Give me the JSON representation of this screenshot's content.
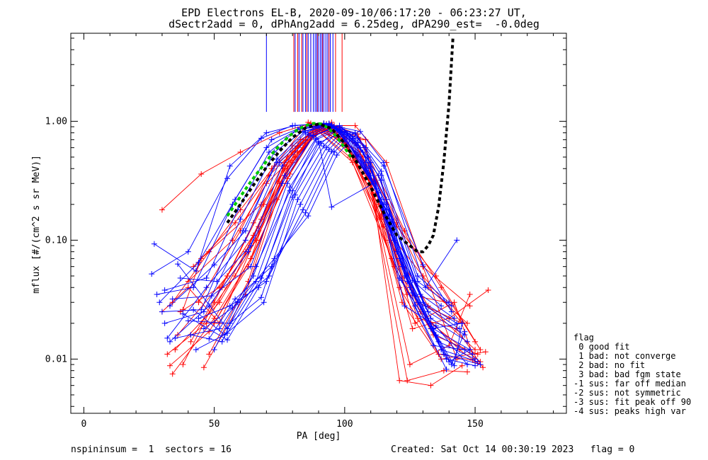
{
  "chart_data": {
    "type": "scatter",
    "title": "EPD Electrons EL-B, 2020-09-10/06:17:20 - 06:23:27 UT,",
    "subtitle": "dSectr2add = 0, dPhAng2add = 6.25deg, dPA290_est=  -0.0deg",
    "xlabel": "PA [deg]",
    "ylabel": "mflux [#/(cm^2 s sr MeV)]",
    "xlim": [
      -5,
      185
    ],
    "ylim": [
      0.0035,
      5.5
    ],
    "yscale": "log",
    "x_ticks": [
      0,
      50,
      100,
      150
    ],
    "y_ticks": [
      {
        "value": 0.01,
        "label": "0.01"
      },
      {
        "value": 0.1,
        "label": "0.10"
      },
      {
        "value": 1.0,
        "label": "1.00"
      }
    ],
    "colors": {
      "red": "#ff0000",
      "blue": "#0000ff",
      "fit": "#000000",
      "model": "#00c800"
    },
    "model_curve": {
      "name": "",
      "x": [
        55,
        58,
        61,
        64,
        67,
        70,
        73,
        76,
        79,
        82,
        85,
        88,
        91,
        94,
        97,
        100,
        103
      ],
      "y": [
        0.16,
        0.2,
        0.25,
        0.31,
        0.38,
        0.46,
        0.56,
        0.66,
        0.76,
        0.85,
        0.92,
        0.96,
        0.95,
        0.87,
        0.74,
        0.6,
        0.48
      ]
    },
    "fit_curve": {
      "name": "",
      "x": [
        55,
        60,
        65,
        70,
        75,
        80,
        85,
        90,
        95,
        100,
        105,
        110,
        115,
        120,
        125,
        128,
        130,
        132,
        134,
        136,
        138,
        140,
        141.5
      ],
      "y": [
        0.14,
        0.2,
        0.29,
        0.41,
        0.56,
        0.73,
        0.88,
        0.95,
        0.87,
        0.65,
        0.44,
        0.28,
        0.17,
        0.11,
        0.09,
        0.08,
        0.08,
        0.09,
        0.11,
        0.19,
        0.45,
        1.4,
        5.0
      ]
    },
    "red_series": [
      {
        "x": [
          30,
          45,
          60,
          75,
          87,
          100,
          115,
          130,
          145
        ],
        "y": [
          0.18,
          0.36,
          0.55,
          0.8,
          0.96,
          0.7,
          0.13,
          0.05,
          0.02
        ]
      },
      {
        "x": [
          32,
          47,
          62,
          77,
          88,
          102,
          117,
          132,
          150
        ],
        "y": [
          0.011,
          0.02,
          0.08,
          0.4,
          0.9,
          0.5,
          0.1,
          0.028,
          0.012
        ]
      },
      {
        "x": [
          33,
          48,
          63,
          78,
          89,
          103,
          118,
          133,
          152
        ],
        "y": [
          0.0088,
          0.017,
          0.06,
          0.33,
          0.86,
          0.45,
          0.07,
          0.02,
          0.0095
        ]
      },
      {
        "x": [
          34,
          50,
          64,
          79,
          90,
          104,
          119,
          134,
          151
        ],
        "y": [
          0.0075,
          0.022,
          0.07,
          0.36,
          0.88,
          0.5,
          0.06,
          0.016,
          0.011
        ]
      },
      {
        "x": [
          35,
          52,
          66,
          80,
          91,
          106,
          121,
          136,
          149
        ],
        "y": [
          0.012,
          0.03,
          0.1,
          0.45,
          0.9,
          0.55,
          0.04,
          0.011,
          0.0098
        ]
      },
      {
        "x": [
          36,
          55,
          67,
          81,
          92,
          107,
          122,
          137,
          154
        ],
        "y": [
          0.016,
          0.05,
          0.13,
          0.5,
          0.92,
          0.5,
          0.03,
          0.01,
          0.0115
        ]
      },
      {
        "x": [
          38,
          45,
          68,
          82,
          93,
          108,
          124,
          138,
          147
        ],
        "y": [
          0.026,
          0.07,
          0.2,
          0.55,
          0.95,
          0.45,
          0.0066,
          0.008,
          0.0078
        ]
      },
      {
        "x": [
          40,
          57,
          70,
          84,
          95,
          109,
          125,
          140,
          148
        ],
        "y": [
          0.045,
          0.1,
          0.3,
          0.6,
          0.98,
          0.35,
          0.009,
          0.013,
          0.035
        ]
      },
      {
        "x": [
          42,
          58,
          71,
          85,
          96,
          105,
          120,
          135,
          152
        ],
        "y": [
          0.06,
          0.14,
          0.35,
          0.7,
          0.92,
          0.78,
          0.13,
          0.05,
          0.012
        ]
      },
      {
        "x": [
          44,
          60,
          72,
          86,
          97,
          106,
          123,
          137,
          150
        ],
        "y": [
          0.03,
          0.12,
          0.4,
          0.75,
          0.88,
          0.7,
          0.12,
          0.04,
          0.014
        ]
      },
      {
        "x": [
          46,
          62,
          74,
          87,
          98,
          110,
          126,
          140,
          155
        ],
        "y": [
          0.0085,
          0.035,
          0.22,
          0.8,
          0.9,
          0.3,
          0.018,
          0.022,
          0.038
        ]
      },
      {
        "x": [
          48,
          63,
          75,
          88,
          99,
          112,
          127,
          142,
          150
        ],
        "y": [
          0.011,
          0.045,
          0.3,
          0.85,
          0.7,
          0.25,
          0.02,
          0.03,
          0.0095
        ]
      },
      {
        "x": [
          50,
          64,
          77,
          89,
          100,
          113,
          128,
          143,
          153
        ],
        "y": [
          0.02,
          0.07,
          0.45,
          0.9,
          0.65,
          0.2,
          0.022,
          0.018,
          0.0085
        ]
      },
      {
        "x": [
          53,
          66,
          78,
          90,
          101,
          114,
          129,
          144,
          151
        ],
        "y": [
          0.04,
          0.1,
          0.5,
          0.92,
          0.6,
          0.15,
          0.025,
          0.012,
          0.0092
        ]
      },
      {
        "x": [
          38,
          50,
          65,
          80,
          92,
          104,
          116,
          130,
          148
        ],
        "y": [
          0.009,
          0.03,
          0.14,
          0.62,
          0.96,
          0.65,
          0.22,
          0.06,
          0.028
        ]
      },
      {
        "x": [
          41,
          55,
          69,
          83,
          94,
          106,
          120,
          132,
          147
        ],
        "y": [
          0.014,
          0.05,
          0.2,
          0.7,
          0.93,
          0.6,
          0.14,
          0.04,
          0.02
        ]
      },
      {
        "x": [
          30,
          40,
          52,
          67,
          82,
          95,
          108,
          121,
          133,
          145
        ],
        "y": [
          0.025,
          0.04,
          0.02,
          0.12,
          0.62,
          0.9,
          0.7,
          0.0066,
          0.006,
          0.0088
        ]
      },
      {
        "x": [
          34,
          48,
          60,
          73,
          86,
          97,
          111,
          124,
          139
        ],
        "y": [
          0.03,
          0.08,
          0.18,
          0.42,
          0.98,
          0.8,
          0.32,
          0.035,
          0.03
        ]
      },
      {
        "x": [
          37,
          52,
          65,
          78,
          90,
          100,
          114,
          128,
          145
        ],
        "y": [
          0.025,
          0.04,
          0.11,
          0.4,
          0.9,
          0.72,
          0.16,
          0.03,
          0.02
        ]
      },
      {
        "x": [
          45,
          58,
          68,
          80,
          93,
          104,
          116,
          130,
          143
        ],
        "y": [
          0.02,
          0.05,
          0.15,
          0.55,
          0.92,
          0.92,
          0.45,
          0.06,
          0.01
        ]
      }
    ],
    "blue_series": [
      {
        "x": [
          26,
          40,
          55,
          68,
          80,
          92,
          106,
          115,
          131,
          143
        ],
        "y": [
          0.052,
          0.08,
          0.33,
          0.72,
          0.92,
          0.96,
          0.82,
          0.45,
          0.04,
          0.1
        ]
      },
      {
        "x": [
          27,
          43,
          56,
          70,
          81,
          92,
          105,
          115,
          130,
          141
        ],
        "y": [
          0.093,
          0.055,
          0.42,
          0.8,
          0.92,
          0.96,
          0.72,
          0.42,
          0.062,
          0.025
        ]
      },
      {
        "x": [
          28,
          42,
          57,
          70,
          82,
          93,
          104,
          114,
          128,
          140
        ],
        "y": [
          0.035,
          0.04,
          0.2,
          0.6,
          0.85,
          0.92,
          0.8,
          0.38,
          0.05,
          0.03
        ]
      },
      {
        "x": [
          29,
          44,
          58,
          72,
          83,
          93,
          104,
          114,
          128,
          141
        ],
        "y": [
          0.03,
          0.065,
          0.22,
          0.7,
          0.88,
          0.94,
          0.78,
          0.35,
          0.045,
          0.028
        ]
      },
      {
        "x": [
          30,
          45,
          60,
          73,
          84,
          94,
          105,
          116,
          129,
          142
        ],
        "y": [
          0.025,
          0.026,
          0.15,
          0.55,
          0.82,
          0.95,
          0.66,
          0.22,
          0.035,
          0.022
        ]
      },
      {
        "x": [
          31,
          46,
          61,
          74,
          85,
          94,
          106,
          116,
          130,
          143
        ],
        "y": [
          0.02,
          0.025,
          0.12,
          0.45,
          0.8,
          0.96,
          0.6,
          0.2,
          0.03,
          0.02
        ]
      },
      {
        "x": [
          32,
          47,
          62,
          75,
          86,
          95,
          107,
          118,
          131,
          144
        ],
        "y": [
          0.015,
          0.04,
          0.1,
          0.45,
          0.78,
          0.94,
          0.55,
          0.15,
          0.028,
          0.018
        ]
      },
      {
        "x": [
          33,
          48,
          63,
          76,
          87,
          95,
          108,
          118,
          132,
          146
        ],
        "y": [
          0.014,
          0.028,
          0.08,
          0.42,
          0.76,
          0.92,
          0.45,
          0.12,
          0.025,
          0.016
        ]
      },
      {
        "x": [
          34,
          49,
          64,
          77,
          88,
          96,
          109,
          119,
          133,
          147
        ],
        "y": [
          0.032,
          0.034,
          0.06,
          0.35,
          0.75,
          0.9,
          0.4,
          0.1,
          0.022,
          0.014
        ]
      },
      {
        "x": [
          35,
          52,
          65,
          78,
          89,
          97,
          110,
          120,
          134,
          148
        ],
        "y": [
          0.015,
          0.018,
          0.05,
          0.3,
          0.72,
          0.88,
          0.35,
          0.08,
          0.018,
          0.012
        ]
      },
      {
        "x": [
          36,
          55,
          66,
          79,
          90,
          95,
          111,
          121,
          135,
          149
        ],
        "y": [
          0.063,
          0.018,
          0.045,
          0.28,
          0.68,
          0.19,
          0.3,
          0.07,
          0.016,
          0.011
        ]
      },
      {
        "x": [
          38,
          55,
          67,
          80,
          91,
          97,
          112,
          122,
          136,
          150
        ],
        "y": [
          0.024,
          0.0145,
          0.04,
          0.26,
          0.65,
          0.86,
          0.27,
          0.06,
          0.014,
          0.01
        ]
      },
      {
        "x": [
          40,
          56,
          68,
          81,
          92,
          98,
          113,
          123,
          137,
          151
        ],
        "y": [
          0.021,
          0.02,
          0.033,
          0.24,
          0.62,
          0.85,
          0.25,
          0.05,
          0.012,
          0.0095
        ]
      },
      {
        "x": [
          42,
          54,
          69,
          82,
          93,
          99,
          114,
          124,
          138,
          152
        ],
        "y": [
          0.026,
          0.016,
          0.03,
          0.22,
          0.6,
          0.82,
          0.22,
          0.045,
          0.011,
          0.009
        ]
      },
      {
        "x": [
          44,
          56,
          70,
          83,
          94,
          100,
          115,
          125,
          139,
          150
        ],
        "y": [
          0.022,
          0.028,
          0.045,
          0.2,
          0.58,
          0.8,
          0.2,
          0.04,
          0.01,
          0.0088
        ]
      },
      {
        "x": [
          46,
          57,
          71,
          84,
          95,
          101,
          116,
          126,
          140,
          148
        ],
        "y": [
          0.018,
          0.027,
          0.05,
          0.18,
          0.56,
          0.78,
          0.18,
          0.036,
          0.0095,
          0.012
        ]
      },
      {
        "x": [
          48,
          58,
          72,
          85,
          96,
          102,
          117,
          127,
          141,
          146
        ],
        "y": [
          0.0148,
          0.032,
          0.06,
          0.17,
          0.55,
          0.75,
          0.16,
          0.034,
          0.009,
          0.017
        ]
      },
      {
        "x": [
          50,
          59,
          73,
          86,
          97,
          103,
          118,
          128,
          142,
          145
        ],
        "y": [
          0.012,
          0.03,
          0.07,
          0.16,
          0.52,
          0.72,
          0.14,
          0.03,
          0.0088,
          0.02
        ]
      },
      {
        "x": [
          37,
          51,
          64,
          76,
          88,
          98,
          108,
          121,
          133,
          145
        ],
        "y": [
          0.048,
          0.045,
          0.09,
          0.3,
          0.75,
          0.92,
          0.6,
          0.048,
          0.018,
          0.02
        ]
      },
      {
        "x": [
          41,
          53,
          66,
          79,
          89,
          99,
          109,
          122,
          134,
          146
        ],
        "y": [
          0.016,
          0.014,
          0.06,
          0.26,
          0.7,
          0.88,
          0.5,
          0.046,
          0.013,
          0.012
        ]
      },
      {
        "x": [
          43,
          55,
          68,
          80,
          90,
          100,
          110,
          123,
          135,
          147
        ],
        "y": [
          0.012,
          0.0165,
          0.048,
          0.23,
          0.66,
          0.82,
          0.45,
          0.028,
          0.019,
          0.009
        ]
      },
      {
        "x": [
          31,
          47,
          59,
          71,
          82,
          92,
          102,
          113,
          126,
          137
        ],
        "y": [
          0.038,
          0.048,
          0.18,
          0.55,
          0.85,
          0.93,
          0.78,
          0.35,
          0.046,
          0.028
        ]
      },
      {
        "x": [
          33,
          50,
          62,
          74,
          85,
          95,
          103,
          114,
          127,
          139
        ],
        "y": [
          0.028,
          0.062,
          0.12,
          0.48,
          0.83,
          0.92,
          0.75,
          0.32,
          0.028,
          0.0082
        ]
      }
    ],
    "red_vlines": [
      80.5,
      82,
      83.5,
      85.5,
      87,
      89.5,
      91.5,
      94,
      96.5,
      99
    ],
    "blue_vlines": [
      70,
      81,
      82.5,
      84,
      85,
      86,
      87,
      88,
      88.7,
      89.3,
      90,
      90.7,
      91.3,
      92,
      92.8,
      93.5,
      94.5,
      95.5
    ],
    "vline_range": [
      1.2,
      5.5
    ],
    "legend": {
      "title": "flag",
      "entries": [
        " 0 good fit",
        " 1 bad: not converge",
        " 2 bad: no fit",
        " 3 bad: bad fgm state",
        "-1 sus: far off median",
        "-2 sus: not symmetric",
        "-3 sus: fit peak off 90",
        "-4 sus: peaks high var"
      ]
    }
  },
  "footer": {
    "left": "nspininsum =  1  sectors = 16",
    "right": "Created: Sat Oct 14 00:30:19 2023   flag = 0"
  }
}
